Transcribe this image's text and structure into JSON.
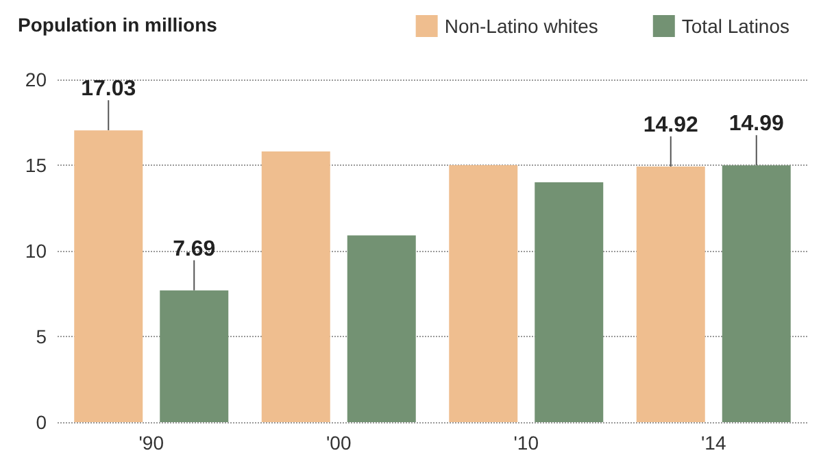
{
  "chart_data": {
    "type": "bar",
    "ylabel": "Population in millions",
    "categories": [
      "'90",
      "'00",
      "'10",
      "'14"
    ],
    "series": [
      {
        "name": "Non-Latino whites",
        "color": "#efbe8f",
        "values": [
          17.03,
          15.8,
          15.0,
          14.92
        ],
        "value_labels": [
          "17.03",
          null,
          null,
          "14.92"
        ]
      },
      {
        "name": "Total Latinos",
        "color": "#739273",
        "values": [
          7.69,
          10.9,
          14.0,
          14.99
        ],
        "value_labels": [
          "7.69",
          null,
          null,
          "14.99"
        ]
      }
    ],
    "ylim": [
      0,
      20
    ],
    "yticks": [
      0,
      5,
      10,
      15,
      20
    ],
    "grid": "y",
    "legend": "top right"
  }
}
